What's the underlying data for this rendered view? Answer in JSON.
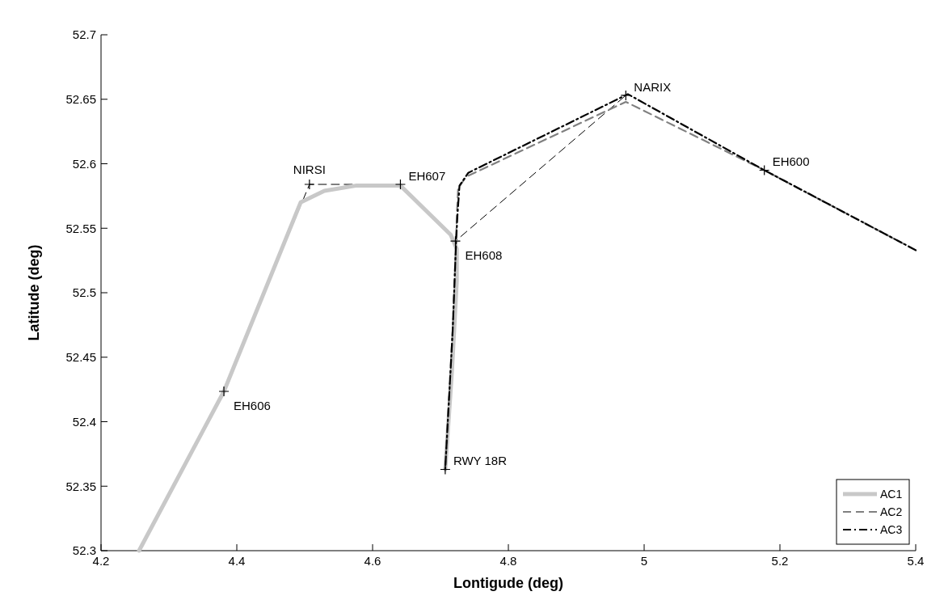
{
  "chart_data": {
    "type": "line",
    "xlabel": "Lontigude (deg)",
    "ylabel": "Latitude (deg)",
    "xlim": [
      4.2,
      5.4
    ],
    "ylim": [
      52.3,
      52.7
    ],
    "xticks": [
      4.2,
      4.4,
      4.6,
      4.8,
      5,
      5.2,
      5.4
    ],
    "yticks": [
      52.3,
      52.35,
      52.4,
      52.45,
      52.5,
      52.55,
      52.6,
      52.65,
      52.7
    ],
    "grid": false,
    "legend": "bottom right",
    "series": [
      {
        "color": "#000000",
        "line_style": "dashed",
        "x": [
          4.381,
          4.507,
          4.641,
          4.722,
          4.973
        ],
        "values": [
          52.4235,
          52.584,
          52.584,
          52.54,
          52.653
        ]
      },
      {
        "name": "AC1",
        "color": "#c8c8c8",
        "line_style": "solid",
        "x": [
          4.256,
          4.381,
          4.494,
          4.529,
          4.575,
          4.641,
          4.715,
          4.724,
          4.724,
          4.717,
          4.707
        ],
        "values": [
          52.3,
          52.4235,
          52.57,
          52.579,
          52.583,
          52.583,
          52.545,
          52.534,
          52.509,
          52.44,
          52.363
        ]
      },
      {
        "name": "AC2",
        "color": "#808080",
        "line_style": "dashed",
        "x": [
          5.4,
          5.177,
          4.973,
          4.738,
          4.726,
          4.724,
          4.723,
          4.718,
          4.707
        ],
        "values": [
          52.533,
          52.595,
          52.648,
          52.59,
          52.581,
          52.559,
          52.54,
          52.471,
          52.363
        ]
      },
      {
        "name": "AC3",
        "color": "#000000",
        "line_style": "dashdot",
        "x": [
          5.4,
          5.177,
          4.976,
          4.741,
          4.728,
          4.725,
          4.723,
          4.718,
          4.707
        ],
        "values": [
          52.533,
          52.595,
          52.654,
          52.593,
          52.583,
          52.56,
          52.54,
          52.471,
          52.363
        ]
      },
      {
        "type": "scatter",
        "color": "#000000",
        "marker": "cross",
        "x": [
          4.381,
          4.507,
          4.641,
          4.722,
          4.707,
          4.973,
          5.177
        ],
        "values": [
          52.4235,
          52.584,
          52.584,
          52.54,
          52.363,
          52.653,
          52.595
        ]
      }
    ],
    "annotations": [
      {
        "text": "EH606",
        "x": 4.381,
        "y": 52.4235
      },
      {
        "text": "NIRSI",
        "x": 4.507,
        "y": 52.584
      },
      {
        "text": "EH607",
        "x": 4.641,
        "y": 52.584
      },
      {
        "text": "EH608",
        "x": 4.722,
        "y": 52.54
      },
      {
        "text": "RWY 18R",
        "x": 4.707,
        "y": 52.363
      },
      {
        "text": "NARIX",
        "x": 4.973,
        "y": 52.653
      },
      {
        "text": "EH600",
        "x": 5.177,
        "y": 52.595
      }
    ]
  }
}
